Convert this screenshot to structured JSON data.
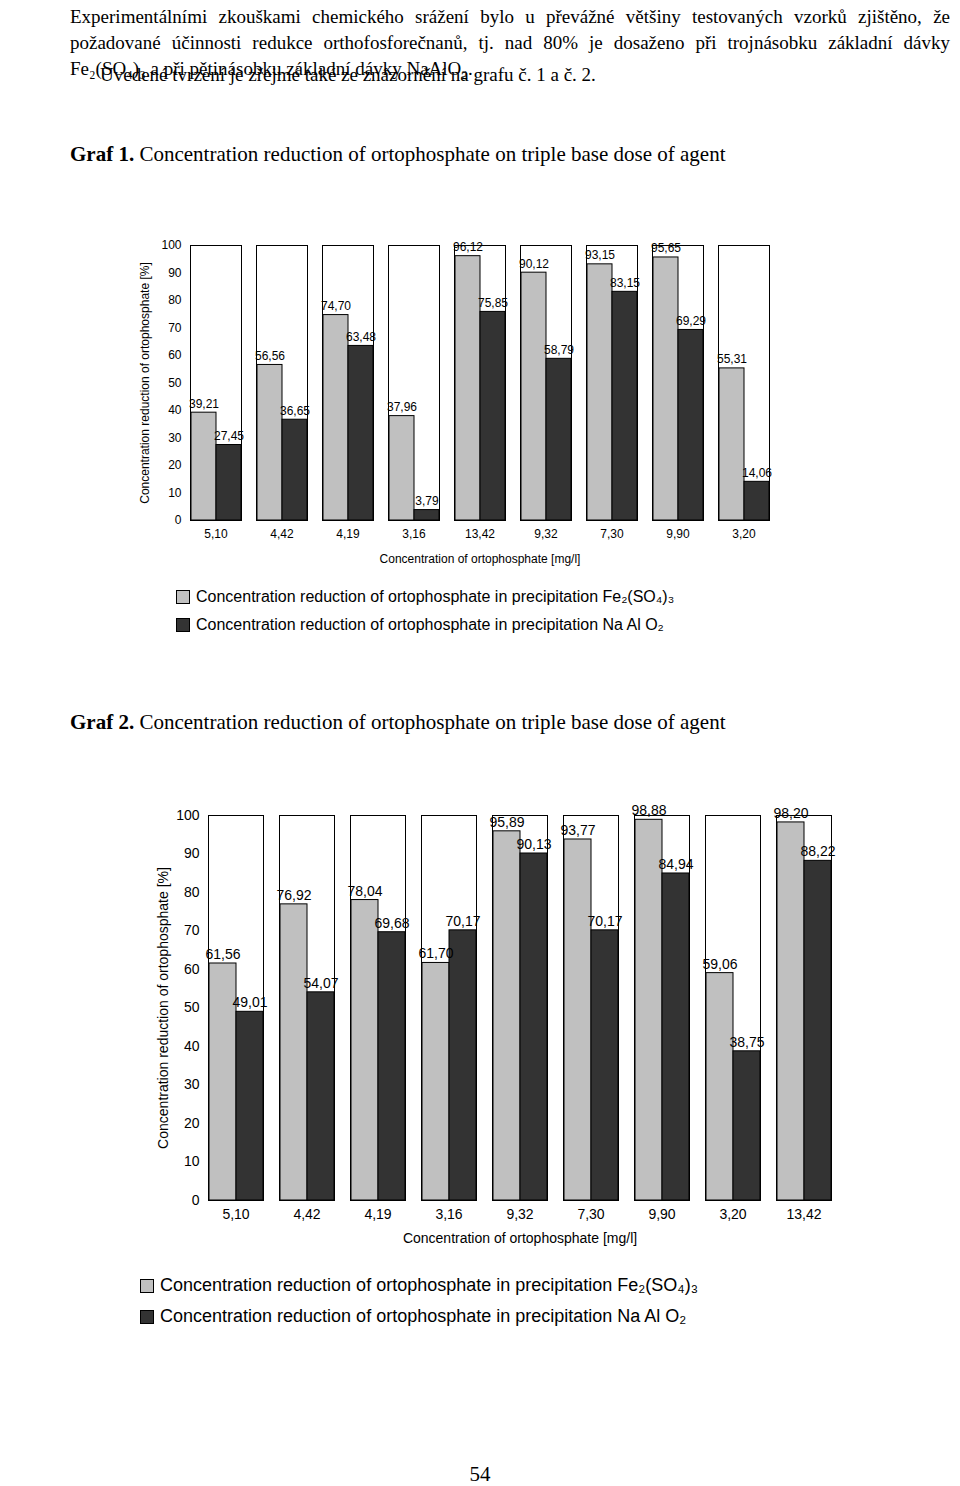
{
  "paragraphs": [
    "Experimentálními zkouškami chemického srážení bylo u převážné většiny testovaných vzorků zjištěno, že požadované účinnosti redukce orthofosforečnanů, tj. nad 80% je dosaženo při trojnásobku základní dávky Fe₂(SO₄)₃ a při pětinásobku základní dávky NaAlO₂.",
    "Uvedené tvrzení je zřejmé také ze znázornění na grafu č. 1 a č. 2."
  ],
  "chart_data": [
    {
      "type": "bar",
      "title": "Graf 1. Concentration reduction of ortophosphate on triple base dose of agent",
      "x_label": "Concentration of ortophosphate [mg/l]",
      "y_label": "Concentration reduction of ortophosphate [%]",
      "categories": [
        "5,10",
        "4,42",
        "4,19",
        "3,16",
        "13,42",
        "9,32",
        "7,30",
        "9,90",
        "3,20"
      ],
      "series": [
        {
          "name": "Concentration reduction of ortophosphate in precipitation Fe₂(SO₄)₃",
          "color": "#c0c0c0",
          "values": [
            39.21,
            56.56,
            74.7,
            37.96,
            96.12,
            90.12,
            93.15,
            95.65,
            55.31
          ],
          "value_labels": [
            "39,21",
            "56,56",
            "74,70",
            "37,96",
            "96,12",
            "90,12",
            "93,15",
            "95,65",
            "55,31"
          ]
        },
        {
          "name": "Concentration reduction of ortophosphate in precipitation Na Al O₂",
          "color": "#333333",
          "values": [
            27.45,
            36.65,
            63.48,
            3.79,
            75.85,
            58.79,
            83.15,
            69.29,
            14.06
          ],
          "value_labels": [
            "27,45",
            "36,65",
            "63,48",
            "3,79",
            "75,85",
            "58,79",
            "83,15",
            "69,29",
            "14,06"
          ]
        }
      ],
      "ylim": [
        0,
        100
      ],
      "yticks": [
        0,
        10,
        20,
        30,
        40,
        50,
        60,
        70,
        80,
        90,
        100
      ],
      "grid": false,
      "data_labels": true,
      "legend": "bottom"
    },
    {
      "type": "bar",
      "title": "Graf 2. Concentration reduction of ortophosphate on triple base dose of agent",
      "x_label": "Concentration of ortophosphate [mg/l]",
      "y_label": "Concentration reduction of ortophosphate [%]",
      "categories": [
        "5,10",
        "4,42",
        "4,19",
        "3,16",
        "9,32",
        "7,30",
        "9,90",
        "3,20",
        "13,42"
      ],
      "series": [
        {
          "name": "Concentration reduction of ortophosphate in precipitation Fe₂(SO₄)₃",
          "color": "#c0c0c0",
          "values": [
            61.56,
            76.92,
            78.04,
            61.7,
            95.89,
            93.77,
            98.88,
            59.06,
            98.2
          ],
          "value_labels": [
            "61,56",
            "76,92",
            "78,04",
            "61,70",
            "95,89",
            "93,77",
            "98,88",
            "59,06",
            "98,20"
          ]
        },
        {
          "name": "Concentration reduction of ortophosphate in precipitation Na Al O₂",
          "color": "#333333",
          "values": [
            49.01,
            54.07,
            69.68,
            70.17,
            90.13,
            70.17,
            84.94,
            38.75,
            88.22
          ],
          "value_labels": [
            "49,01",
            "54,07",
            "69,68",
            "70,17",
            "90,13",
            "70,17",
            "84,94",
            "38,75",
            "88,22"
          ]
        }
      ],
      "ylim": [
        0,
        100
      ],
      "yticks": [
        0,
        10,
        20,
        30,
        40,
        50,
        60,
        70,
        80,
        90,
        100
      ],
      "grid": false,
      "data_labels": true,
      "legend": "bottom"
    }
  ],
  "page_number": "54"
}
